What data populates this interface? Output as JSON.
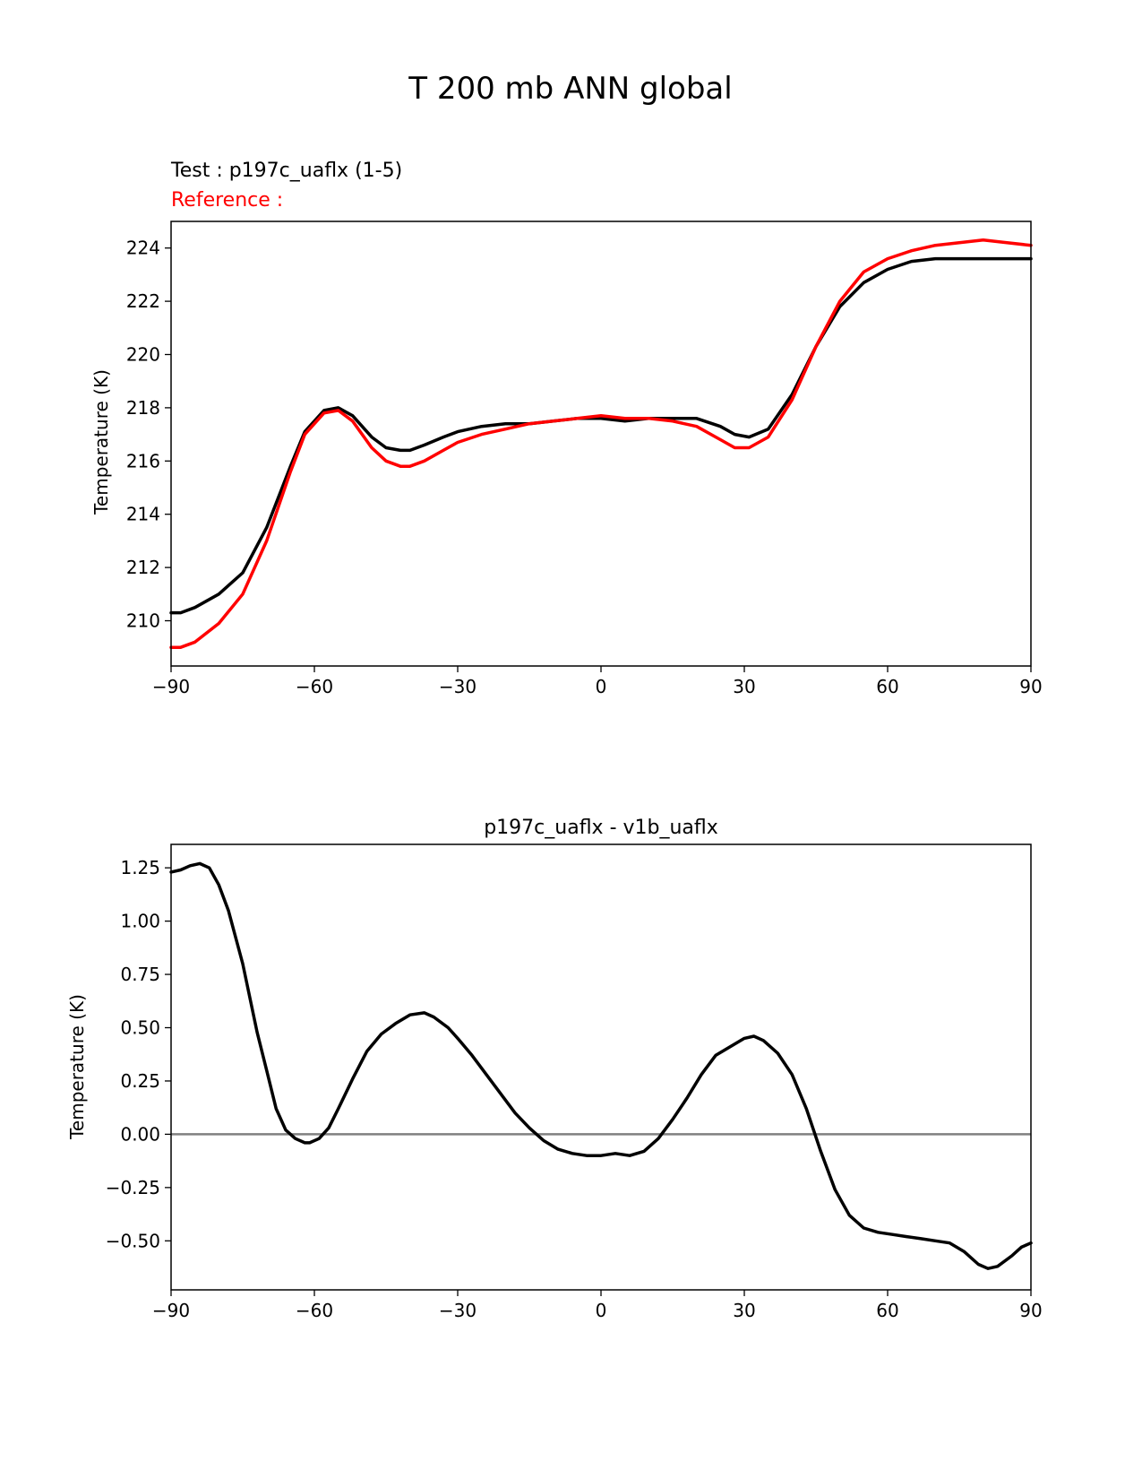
{
  "figure_title": "T 200 mb ANN global",
  "chart_data": [
    {
      "type": "line",
      "test_label": "Test : p197c_uaflx (1-5)",
      "reference_label": "Reference :",
      "ylabel": "Temperature (K)",
      "xlim": [
        -90,
        90
      ],
      "ylim": [
        208.3,
        225.0
      ],
      "xticks": [
        -90,
        -60,
        -30,
        0,
        30,
        60,
        90
      ],
      "xtick_labels": [
        "−90",
        "−60",
        "−30",
        "0",
        "30",
        "60",
        "90"
      ],
      "yticks": [
        210,
        212,
        214,
        216,
        218,
        220,
        222,
        224
      ],
      "ytick_labels": [
        "210",
        "212",
        "214",
        "216",
        "218",
        "220",
        "222",
        "224"
      ],
      "grid": false,
      "series": [
        {
          "color": "#000000",
          "x": [
            -90,
            -88,
            -85,
            -80,
            -75,
            -70,
            -65,
            -62,
            -58,
            -55,
            -52,
            -48,
            -45,
            -42,
            -40,
            -37,
            -33,
            -30,
            -25,
            -20,
            -15,
            -10,
            -5,
            0,
            5,
            10,
            15,
            20,
            25,
            28,
            31,
            35,
            40,
            45,
            50,
            55,
            60,
            65,
            70,
            75,
            80,
            85,
            90
          ],
          "y": [
            210.3,
            210.3,
            210.5,
            211.0,
            211.8,
            213.5,
            215.8,
            217.1,
            217.9,
            218.0,
            217.7,
            216.9,
            216.5,
            216.4,
            216.4,
            216.6,
            216.9,
            217.1,
            217.3,
            217.4,
            217.4,
            217.5,
            217.6,
            217.6,
            217.5,
            217.6,
            217.6,
            217.6,
            217.3,
            217.0,
            216.9,
            217.2,
            218.5,
            220.3,
            221.8,
            222.7,
            223.2,
            223.5,
            223.6,
            223.6,
            223.6,
            223.6,
            223.6
          ]
        },
        {
          "color": "#ff0000",
          "x": [
            -90,
            -88,
            -85,
            -80,
            -75,
            -70,
            -65,
            -62,
            -58,
            -55,
            -52,
            -48,
            -45,
            -42,
            -40,
            -37,
            -33,
            -30,
            -25,
            -20,
            -15,
            -10,
            -5,
            0,
            5,
            10,
            15,
            20,
            25,
            28,
            31,
            35,
            40,
            45,
            50,
            55,
            60,
            65,
            70,
            75,
            80,
            85,
            90
          ],
          "y": [
            209.0,
            209.0,
            209.2,
            209.9,
            211.0,
            213.0,
            215.6,
            217.0,
            217.8,
            217.9,
            217.5,
            216.5,
            216.0,
            215.8,
            215.8,
            216.0,
            216.4,
            216.7,
            217.0,
            217.2,
            217.4,
            217.5,
            217.6,
            217.7,
            217.6,
            217.6,
            217.5,
            217.3,
            216.8,
            216.5,
            216.5,
            216.9,
            218.3,
            220.3,
            222.0,
            223.1,
            223.6,
            223.9,
            224.1,
            224.2,
            224.3,
            224.2,
            224.1
          ]
        }
      ]
    },
    {
      "type": "line",
      "title": "p197c_uaflx - v1b_uaflx",
      "ylabel": "Temperature (K)",
      "xlim": [
        -90,
        90
      ],
      "ylim": [
        -0.73,
        1.36
      ],
      "xticks": [
        -90,
        -60,
        -30,
        0,
        30,
        60,
        90
      ],
      "xtick_labels": [
        "−90",
        "−60",
        "−30",
        "0",
        "30",
        "60",
        "90"
      ],
      "yticks": [
        -0.5,
        -0.25,
        0.0,
        0.25,
        0.5,
        0.75,
        1.0,
        1.25
      ],
      "ytick_labels": [
        "−0.50",
        "−0.25",
        "0.00",
        "0.25",
        "0.50",
        "0.75",
        "1.00",
        "1.25"
      ],
      "grid": false,
      "zero_line": {
        "y": 0.0,
        "color": "#808080"
      },
      "series": [
        {
          "color": "#000000",
          "x": [
            -90,
            -88,
            -86,
            -84,
            -82,
            -80,
            -78,
            -75,
            -72,
            -70,
            -68,
            -66,
            -64,
            -62,
            -61,
            -59,
            -57,
            -55,
            -52,
            -49,
            -46,
            -43,
            -40,
            -37,
            -35,
            -32,
            -30,
            -27,
            -24,
            -21,
            -18,
            -15,
            -12,
            -9,
            -6,
            -3,
            0,
            3,
            6,
            9,
            12,
            15,
            18,
            21,
            24,
            27,
            30,
            32,
            34,
            37,
            40,
            43,
            46,
            49,
            52,
            55,
            58,
            61,
            64,
            67,
            70,
            73,
            76,
            79,
            81,
            83,
            86,
            88,
            90
          ],
          "y": [
            1.23,
            1.24,
            1.26,
            1.27,
            1.25,
            1.17,
            1.05,
            0.8,
            0.48,
            0.3,
            0.12,
            0.02,
            -0.02,
            -0.04,
            -0.04,
            -0.02,
            0.03,
            0.12,
            0.26,
            0.39,
            0.47,
            0.52,
            0.56,
            0.57,
            0.55,
            0.5,
            0.45,
            0.37,
            0.28,
            0.19,
            0.1,
            0.03,
            -0.03,
            -0.07,
            -0.09,
            -0.1,
            -0.1,
            -0.09,
            -0.1,
            -0.08,
            -0.02,
            0.07,
            0.17,
            0.28,
            0.37,
            0.41,
            0.45,
            0.46,
            0.44,
            0.38,
            0.28,
            0.12,
            -0.08,
            -0.26,
            -0.38,
            -0.44,
            -0.46,
            -0.47,
            -0.48,
            -0.49,
            -0.5,
            -0.51,
            -0.55,
            -0.61,
            -0.63,
            -0.62,
            -0.57,
            -0.53,
            -0.51
          ]
        }
      ]
    }
  ]
}
